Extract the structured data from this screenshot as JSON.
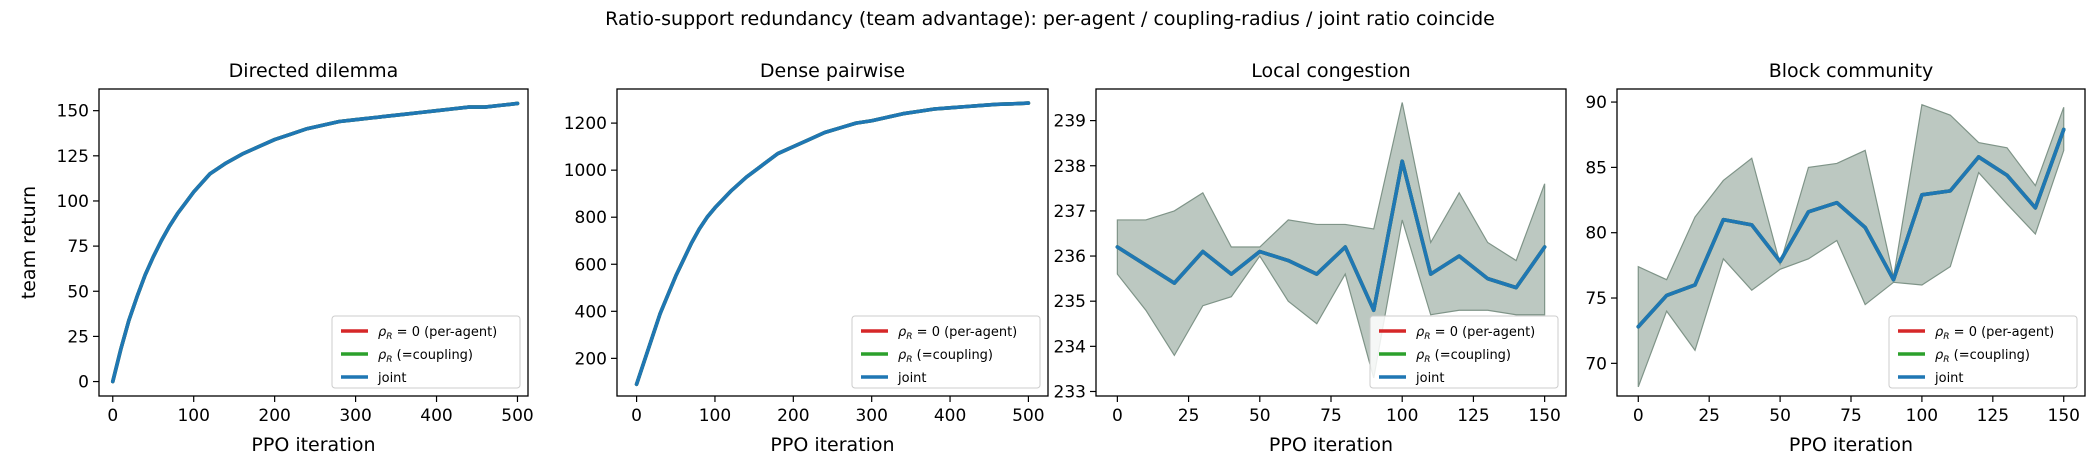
{
  "figure": {
    "suptitle": "Ratio-support redundancy (team advantage): per-agent / coupling-radius / joint ratio coincide"
  },
  "colors": {
    "per_agent": "#d62728",
    "coupling": "#2ca02c",
    "joint": "#1f77b4",
    "band": "#9fb0a6"
  },
  "legend": {
    "entries": [
      {
        "prefix": "ρ",
        "sub": "R",
        "suffix": " = 0 (per-agent)",
        "color": "#d62728"
      },
      {
        "prefix": "ρ",
        "sub": "R",
        "suffix": " (=coupling)",
        "color": "#2ca02c"
      },
      {
        "prefix": "",
        "sub": "",
        "suffix": "joint",
        "color": "#1f77b4"
      }
    ]
  },
  "chart_data": [
    {
      "type": "line",
      "title": "Directed dilemma",
      "xlabel": "PPO iteration",
      "ylabel": "team return",
      "xlim": [
        -17,
        513
      ],
      "ylim": [
        -8,
        162
      ],
      "xticks": [
        0,
        100,
        200,
        300,
        400,
        500
      ],
      "yticks": [
        0,
        25,
        50,
        75,
        100,
        125,
        150
      ],
      "legend_position": "lower right",
      "x": [
        0,
        10,
        20,
        30,
        40,
        50,
        60,
        70,
        80,
        90,
        100,
        120,
        140,
        160,
        180,
        200,
        220,
        240,
        260,
        280,
        300,
        320,
        340,
        360,
        380,
        400,
        420,
        440,
        460,
        480,
        500
      ],
      "series": [
        {
          "name": "ρR = 0 (per-agent)",
          "values": [
            0,
            18,
            34,
            47,
            59,
            69,
            78,
            86,
            93,
            99,
            105,
            115,
            121,
            126,
            130,
            134,
            137,
            140,
            142,
            144,
            145,
            146,
            147,
            148,
            149,
            150,
            151,
            152,
            152,
            153,
            154
          ]
        },
        {
          "name": "ρR (=coupling)",
          "values": [
            0,
            18,
            34,
            47,
            59,
            69,
            78,
            86,
            93,
            99,
            105,
            115,
            121,
            126,
            130,
            134,
            137,
            140,
            142,
            144,
            145,
            146,
            147,
            148,
            149,
            150,
            151,
            152,
            152,
            153,
            154
          ]
        },
        {
          "name": "joint",
          "values": [
            0,
            18,
            34,
            47,
            59,
            69,
            78,
            86,
            93,
            99,
            105,
            115,
            121,
            126,
            130,
            134,
            137,
            140,
            142,
            144,
            145,
            146,
            147,
            148,
            149,
            150,
            151,
            152,
            152,
            153,
            154
          ]
        }
      ],
      "band": null
    },
    {
      "type": "line",
      "title": "Dense pairwise",
      "xlabel": "PPO iteration",
      "ylabel": "",
      "xlim": [
        -25,
        525
      ],
      "ylim": [
        40,
        1345
      ],
      "xticks": [
        0,
        100,
        200,
        300,
        400,
        500
      ],
      "yticks": [
        200,
        400,
        600,
        800,
        1000,
        1200
      ],
      "legend_position": "lower right",
      "x": [
        0,
        10,
        20,
        30,
        40,
        50,
        60,
        70,
        80,
        90,
        100,
        120,
        140,
        160,
        180,
        200,
        220,
        240,
        260,
        280,
        300,
        320,
        340,
        360,
        380,
        400,
        420,
        440,
        460,
        480,
        500
      ],
      "series": [
        {
          "name": "ρR = 0 (per-agent)",
          "values": [
            90,
            190,
            290,
            390,
            470,
            550,
            620,
            690,
            750,
            800,
            840,
            910,
            970,
            1020,
            1070,
            1100,
            1130,
            1160,
            1180,
            1200,
            1210,
            1225,
            1240,
            1250,
            1260,
            1265,
            1270,
            1275,
            1280,
            1282,
            1285
          ]
        },
        {
          "name": "ρR (=coupling)",
          "values": [
            90,
            190,
            290,
            390,
            470,
            550,
            620,
            690,
            750,
            800,
            840,
            910,
            970,
            1020,
            1070,
            1100,
            1130,
            1160,
            1180,
            1200,
            1210,
            1225,
            1240,
            1250,
            1260,
            1265,
            1270,
            1275,
            1280,
            1282,
            1285
          ]
        },
        {
          "name": "joint",
          "values": [
            90,
            190,
            290,
            390,
            470,
            550,
            620,
            690,
            750,
            800,
            840,
            910,
            970,
            1020,
            1070,
            1100,
            1130,
            1160,
            1180,
            1200,
            1210,
            1225,
            1240,
            1250,
            1260,
            1265,
            1270,
            1275,
            1280,
            1282,
            1285
          ]
        }
      ],
      "band": null
    },
    {
      "type": "line",
      "title": "Local congestion",
      "xlabel": "PPO iteration",
      "ylabel": "",
      "xlim": [
        -7.5,
        157.5
      ],
      "ylim": [
        232.9,
        239.7
      ],
      "xticks": [
        0,
        25,
        50,
        75,
        100,
        125,
        150
      ],
      "yticks": [
        233,
        234,
        235,
        236,
        237,
        238,
        239
      ],
      "legend_position": "lower right",
      "x": [
        0,
        10,
        20,
        30,
        40,
        50,
        60,
        70,
        80,
        90,
        100,
        110,
        120,
        130,
        140,
        150
      ],
      "series": [
        {
          "name": "ρR = 0 (per-agent)",
          "values": [
            236.2,
            235.8,
            235.4,
            236.1,
            235.6,
            236.1,
            235.9,
            235.6,
            236.2,
            234.8,
            238.1,
            235.6,
            236.0,
            235.5,
            235.3,
            236.2
          ]
        },
        {
          "name": "ρR (=coupling)",
          "values": [
            236.2,
            235.8,
            235.4,
            236.1,
            235.6,
            236.1,
            235.9,
            235.6,
            236.2,
            234.8,
            238.1,
            235.6,
            236.0,
            235.5,
            235.3,
            236.2
          ]
        },
        {
          "name": "joint",
          "values": [
            236.2,
            235.8,
            235.4,
            236.1,
            235.6,
            236.1,
            235.9,
            235.6,
            236.2,
            234.8,
            238.1,
            235.6,
            236.0,
            235.5,
            235.3,
            236.2
          ]
        }
      ],
      "band": {
        "upper": [
          236.8,
          236.8,
          237.0,
          237.4,
          236.2,
          236.2,
          236.8,
          236.7,
          236.7,
          236.6,
          239.4,
          236.3,
          237.4,
          236.3,
          235.9,
          237.6
        ],
        "lower": [
          235.6,
          234.8,
          233.8,
          234.9,
          235.1,
          236.0,
          235.0,
          234.5,
          235.6,
          233.3,
          236.8,
          234.7,
          234.8,
          234.8,
          234.7,
          234.7
        ]
      }
    },
    {
      "type": "line",
      "title": "Block community",
      "xlabel": "PPO iteration",
      "ylabel": "",
      "xlim": [
        -7.5,
        157.5
      ],
      "ylim": [
        67.5,
        91
      ],
      "xticks": [
        0,
        25,
        50,
        75,
        100,
        125,
        150
      ],
      "yticks": [
        70,
        75,
        80,
        85,
        90
      ],
      "legend_position": "lower right",
      "x": [
        0,
        10,
        20,
        30,
        40,
        50,
        60,
        70,
        80,
        90,
        100,
        110,
        120,
        130,
        140,
        150
      ],
      "series": [
        {
          "name": "ρR = 0 (per-agent)",
          "values": [
            72.8,
            75.2,
            76.0,
            81.0,
            80.6,
            77.8,
            81.6,
            82.3,
            80.4,
            76.4,
            82.9,
            83.2,
            85.8,
            84.4,
            81.9,
            87.9
          ]
        },
        {
          "name": "ρR (=coupling)",
          "values": [
            72.8,
            75.2,
            76.0,
            81.0,
            80.6,
            77.8,
            81.6,
            82.3,
            80.4,
            76.4,
            82.9,
            83.2,
            85.8,
            84.4,
            81.9,
            87.9
          ]
        },
        {
          "name": "joint",
          "values": [
            72.8,
            75.2,
            76.0,
            81.0,
            80.6,
            77.8,
            81.6,
            82.3,
            80.4,
            76.4,
            82.9,
            83.2,
            85.8,
            84.4,
            81.9,
            87.9
          ]
        }
      ],
      "band": {
        "upper": [
          77.4,
          76.4,
          81.2,
          84.0,
          85.7,
          77.6,
          85.0,
          85.3,
          86.3,
          76.6,
          89.8,
          89.0,
          86.9,
          86.5,
          83.6,
          89.6
        ],
        "lower": [
          68.2,
          74.0,
          71.0,
          78.0,
          75.6,
          77.2,
          78.0,
          79.4,
          74.5,
          76.2,
          76.0,
          77.4,
          84.6,
          82.2,
          79.9,
          86.3
        ]
      }
    }
  ]
}
